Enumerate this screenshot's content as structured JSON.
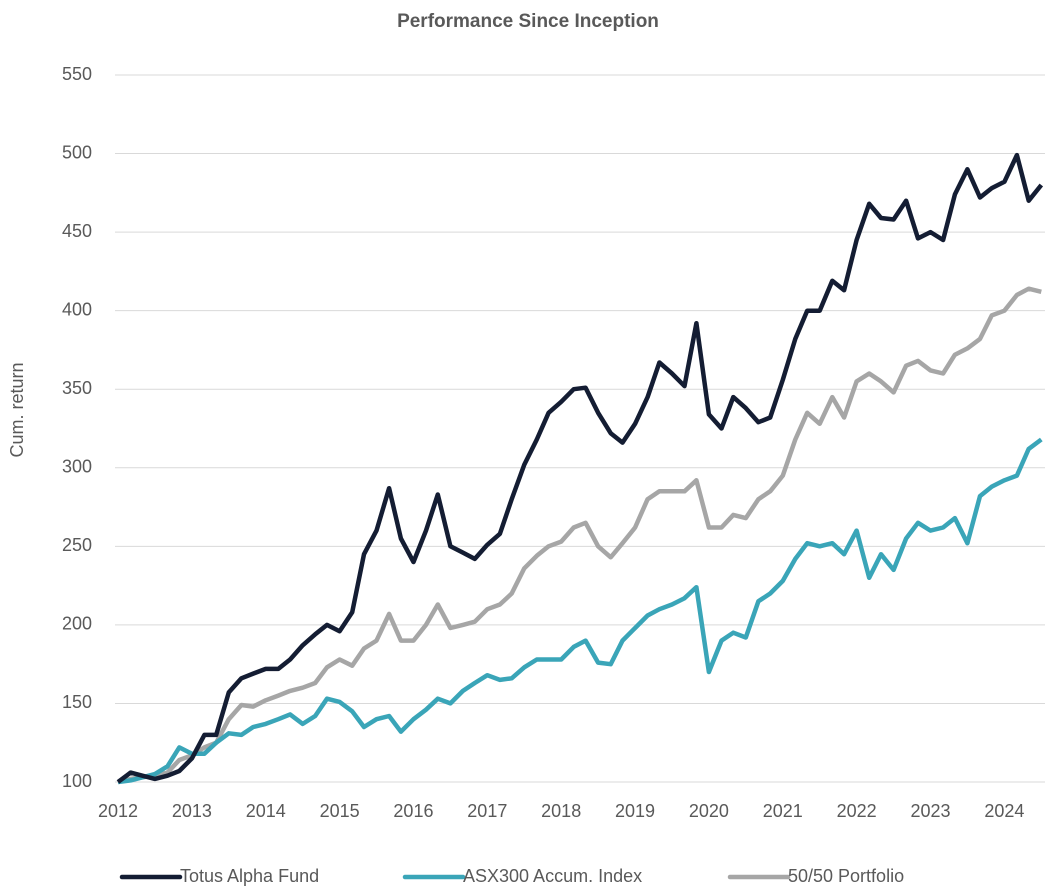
{
  "chart_data": {
    "type": "line",
    "title": "Performance Since Inception",
    "ylabel": "Cum. return",
    "x": [
      2012,
      2012.17,
      2012.33,
      2012.5,
      2012.67,
      2012.83,
      2013,
      2013.17,
      2013.33,
      2013.5,
      2013.67,
      2013.83,
      2014,
      2014.17,
      2014.33,
      2014.5,
      2014.67,
      2014.83,
      2015,
      2015.17,
      2015.33,
      2015.5,
      2015.67,
      2015.83,
      2016,
      2016.17,
      2016.33,
      2016.5,
      2016.67,
      2016.83,
      2017,
      2017.17,
      2017.33,
      2017.5,
      2017.67,
      2017.83,
      2018,
      2018.17,
      2018.33,
      2018.5,
      2018.67,
      2018.83,
      2019,
      2019.17,
      2019.33,
      2019.5,
      2019.67,
      2019.83,
      2020,
      2020.17,
      2020.33,
      2020.5,
      2020.67,
      2020.83,
      2021,
      2021.17,
      2021.33,
      2021.5,
      2021.67,
      2021.83,
      2022,
      2022.17,
      2022.33,
      2022.5,
      2022.67,
      2022.83,
      2023,
      2023.17,
      2023.33,
      2023.5,
      2023.67,
      2023.83,
      2024,
      2024.17,
      2024.33,
      2024.5
    ],
    "series": [
      {
        "name": "Totus Alpha Fund",
        "color": "#141d33",
        "values": [
          100,
          106,
          104,
          102,
          104,
          107,
          115,
          130,
          130,
          157,
          166,
          169,
          172,
          172,
          178,
          187,
          194,
          200,
          196,
          208,
          245,
          260,
          287,
          255,
          240,
          260,
          283,
          250,
          246,
          242,
          251,
          258,
          280,
          302,
          318,
          335,
          342,
          350,
          351,
          335,
          322,
          316,
          328,
          345,
          367,
          360,
          352,
          392,
          334,
          325,
          345,
          338,
          329,
          332,
          356,
          382,
          400,
          400,
          419,
          413,
          445,
          468,
          459,
          458,
          470,
          446,
          450,
          445,
          474,
          490,
          472,
          478,
          482,
          499,
          470,
          480
        ]
      },
      {
        "name": "ASX300 Accum. Index",
        "color": "#3aa5b8",
        "values": [
          100,
          101,
          103,
          105,
          110,
          122,
          118,
          118,
          125,
          131,
          130,
          135,
          137,
          140,
          143,
          137,
          142,
          153,
          151,
          145,
          135,
          140,
          142,
          132,
          140,
          146,
          153,
          150,
          158,
          163,
          168,
          165,
          166,
          173,
          178,
          178,
          178,
          186,
          190,
          176,
          175,
          190,
          198,
          206,
          210,
          213,
          217,
          224,
          170,
          190,
          195,
          192,
          215,
          220,
          228,
          242,
          252,
          250,
          252,
          245,
          260,
          230,
          245,
          235,
          255,
          265,
          260,
          262,
          268,
          252,
          282,
          288,
          292,
          295,
          312,
          318
        ]
      },
      {
        "name": "50/50 Portfolio",
        "color": "#a6a6a6",
        "values": [
          100,
          102,
          103,
          104,
          106,
          114,
          117,
          122,
          125,
          140,
          149,
          148,
          152,
          155,
          158,
          160,
          163,
          173,
          178,
          174,
          185,
          190,
          207,
          190,
          190,
          200,
          213,
          198,
          200,
          202,
          210,
          213,
          220,
          236,
          244,
          250,
          253,
          262,
          265,
          250,
          243,
          252,
          262,
          280,
          285,
          285,
          285,
          292,
          262,
          262,
          270,
          268,
          280,
          285,
          295,
          318,
          335,
          328,
          345,
          332,
          355,
          360,
          355,
          348,
          365,
          368,
          362,
          360,
          372,
          376,
          382,
          397,
          400,
          410,
          414,
          412
        ]
      }
    ],
    "xlim": [
      2012,
      2024.55
    ],
    "xticks": [
      2012,
      2013,
      2014,
      2015,
      2016,
      2017,
      2018,
      2019,
      2020,
      2021,
      2022,
      2023,
      2024
    ],
    "ylim": [
      100,
      550
    ],
    "yticks": [
      100,
      150,
      200,
      250,
      300,
      350,
      400,
      450,
      500,
      550
    ],
    "grid": true,
    "legend": "bottom"
  }
}
